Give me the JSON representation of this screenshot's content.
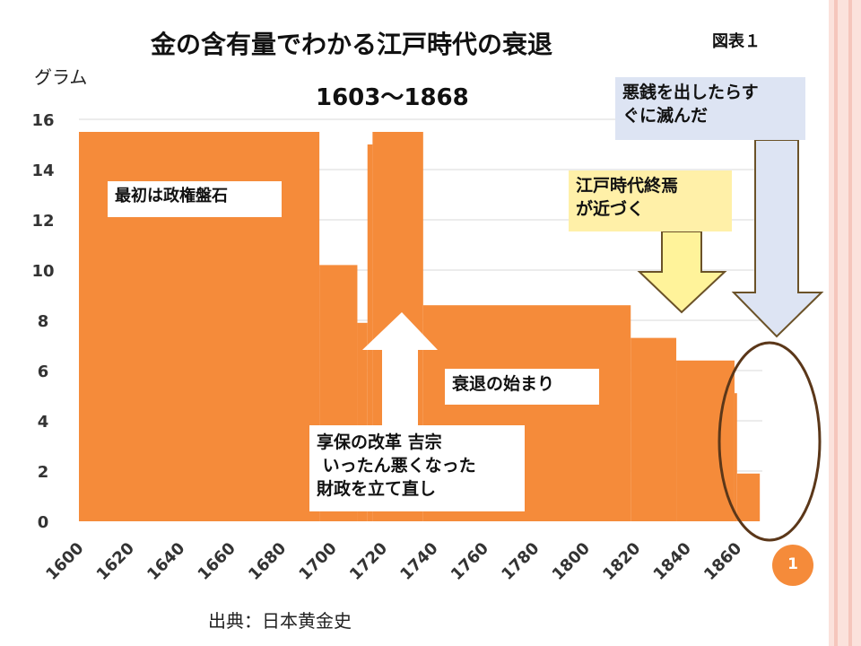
{
  "chart_data": {
    "type": "area",
    "title": "金の含有量でわかる江戸時代の衰退",
    "subtitle": "1603〜1868",
    "figure_label": "図表１",
    "ylabel": "グラム",
    "xlabel": "",
    "ylim": [
      0,
      16
    ],
    "xlim": [
      1600,
      1870
    ],
    "yticks": [
      "0",
      "2",
      "4",
      "6",
      "8",
      "10",
      "12",
      "14",
      "16"
    ],
    "xticks": [
      "1600",
      "1620",
      "1640",
      "1660",
      "1680",
      "1700",
      "1720",
      "1740",
      "1760",
      "1780",
      "1800",
      "1820",
      "1840",
      "1860"
    ],
    "grid": true,
    "series": [
      {
        "name": "金の含有量",
        "steps": [
          {
            "start": 1600,
            "end": 1695,
            "value": 15.5
          },
          {
            "start": 1695,
            "end": 1710,
            "value": 10.2
          },
          {
            "start": 1710,
            "end": 1714,
            "value": 7.9
          },
          {
            "start": 1714,
            "end": 1716,
            "value": 15.0
          },
          {
            "start": 1716,
            "end": 1736,
            "value": 15.5
          },
          {
            "start": 1736,
            "end": 1818,
            "value": 8.6
          },
          {
            "start": 1818,
            "end": 1836,
            "value": 7.3
          },
          {
            "start": 1836,
            "end": 1859,
            "value": 6.4
          },
          {
            "start": 1859,
            "end": 1860,
            "value": 5.1
          },
          {
            "start": 1860,
            "end": 1869,
            "value": 1.9
          }
        ]
      }
    ],
    "annotations": {
      "solid": "最初は政権盤石",
      "kyoho_1": "享保の改革 吉宗",
      "kyoho_2": " いったん悪くなった",
      "kyoho_3": "財政を立て直し",
      "decline": "衰退の始まり",
      "end_1": "江戸時代終焉",
      "end_2": "が近づく",
      "coin_1": "悪銭を出したらす",
      "coin_2": "ぐに滅んだ"
    },
    "source": "出典：日本黄金史",
    "page_number": "1"
  },
  "colors": {
    "fill": "#f58b3a",
    "grid": "#d9d9d9",
    "yellow": "#fff0a8",
    "arrow_yellow": "#fff39a",
    "blue": "#dde4f3",
    "ring": "#5b3719",
    "badge": "#f58b3a",
    "stripe_a": "#f5c6bc",
    "stripe_b": "#fbe2dc"
  }
}
